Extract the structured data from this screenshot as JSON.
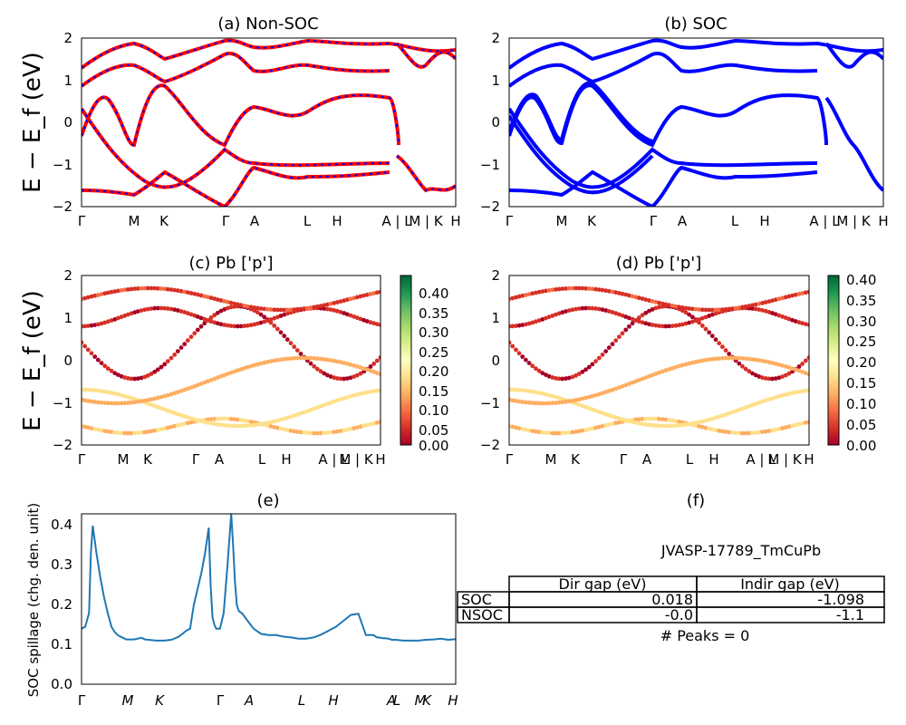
{
  "chart_data": [
    {
      "type": "line",
      "title": "(a) Non-SOC",
      "ylabel": "E − E_f (eV)",
      "ylim": [
        -2,
        2
      ],
      "yticks": [
        "2",
        "1",
        "0",
        "−1",
        "−2"
      ],
      "xtick_labels": [
        "Γ",
        "M",
        "K",
        "Γ",
        "A",
        "L",
        "H",
        "A | L",
        "M | K",
        "H"
      ],
      "series": [
        {
          "color": "#ff0000",
          "style": "solid"
        },
        {
          "color": "#0000ff",
          "style": "dashed"
        }
      ]
    },
    {
      "type": "line",
      "title": "(b) SOC",
      "ylim": [
        -2,
        2
      ],
      "yticks": [
        "2",
        "1",
        "0",
        "−1",
        "−2"
      ],
      "xtick_labels": [
        "Γ",
        "M",
        "K",
        "Γ",
        "A",
        "L",
        "H",
        "A | L",
        "M | K",
        "H"
      ],
      "series": [
        {
          "color": "#0000ff",
          "style": "solid"
        }
      ]
    },
    {
      "type": "scatter",
      "title": "(c)  Pb ['p']",
      "ylabel": "E − E_f (eV)",
      "ylim": [
        -2,
        2
      ],
      "yticks": [
        "2",
        "1",
        "0",
        "−1",
        "−2"
      ],
      "xtick_labels": [
        "Γ",
        "M",
        "K",
        "Γ",
        "A",
        "L",
        "H",
        "A | L",
        "M | K",
        "H"
      ],
      "colorbar_ticks": [
        "0.40",
        "0.35",
        "0.30",
        "0.25",
        "0.20",
        "0.15",
        "0.10",
        "0.05",
        "0.00"
      ],
      "colorbar_range": [
        0.0,
        0.43
      ],
      "colormap": "RdYlGn"
    },
    {
      "type": "scatter",
      "title": "(d) Pb ['p']",
      "ylim": [
        -2,
        2
      ],
      "yticks": [
        "2",
        "1",
        "0",
        "−1",
        "−2"
      ],
      "xtick_labels": [
        "Γ",
        "M",
        "K",
        "Γ",
        "A",
        "L",
        "H",
        "A | L",
        "M | K",
        "H"
      ],
      "colorbar_ticks": [
        "0.40",
        "0.35",
        "0.30",
        "0.25",
        "0.20",
        "0.15",
        "0.10",
        "0.05",
        "0.00"
      ],
      "colorbar_range": [
        0.0,
        0.41
      ],
      "colormap": "RdYlGn"
    },
    {
      "type": "line",
      "title": "(e)",
      "ylabel": "SOC spillage (chg. den. unit)",
      "ylim": [
        0.0,
        0.43
      ],
      "yticks": [
        "0.4",
        "0.3",
        "0.2",
        "0.1",
        "0.0"
      ],
      "xtick_labels": [
        "Γ",
        "M",
        "K",
        "Γ",
        "A",
        "L",
        "H",
        "A",
        "L",
        "M",
        "K",
        "H"
      ],
      "color": "#1f77b4",
      "x": [
        0.0,
        0.01,
        0.02,
        0.025,
        0.03,
        0.04,
        0.05,
        0.06,
        0.07,
        0.08,
        0.09,
        0.1,
        0.12,
        0.14,
        0.16,
        0.17,
        0.18,
        0.2,
        0.22,
        0.24,
        0.26,
        0.28,
        0.29,
        0.3,
        0.31,
        0.32,
        0.33,
        0.34,
        0.345,
        0.35,
        0.355,
        0.36,
        0.37,
        0.38,
        0.39,
        0.4,
        0.405,
        0.41,
        0.415,
        0.42,
        0.43,
        0.44,
        0.46,
        0.48,
        0.5,
        0.52,
        0.54,
        0.56,
        0.58,
        0.6,
        0.62,
        0.64,
        0.66,
        0.68,
        0.7,
        0.72,
        0.74,
        0.76,
        0.78,
        0.79,
        0.8,
        0.805,
        0.81,
        0.82,
        0.83,
        0.84,
        0.86,
        0.88,
        0.9,
        0.92,
        0.94,
        0.96,
        0.98,
        1.0
      ],
      "values": [
        0.14,
        0.145,
        0.18,
        0.33,
        0.4,
        0.33,
        0.27,
        0.22,
        0.18,
        0.145,
        0.13,
        0.122,
        0.113,
        0.113,
        0.117,
        0.113,
        0.112,
        0.11,
        0.11,
        0.112,
        0.12,
        0.135,
        0.14,
        0.2,
        0.24,
        0.28,
        0.33,
        0.395,
        0.25,
        0.17,
        0.15,
        0.14,
        0.14,
        0.18,
        0.3,
        0.43,
        0.35,
        0.26,
        0.2,
        0.185,
        0.178,
        0.165,
        0.14,
        0.127,
        0.124,
        0.124,
        0.12,
        0.118,
        0.115,
        0.115,
        0.118,
        0.125,
        0.135,
        0.145,
        0.16,
        0.175,
        0.178,
        0.124,
        0.124,
        0.118,
        0.117,
        0.116,
        0.116,
        0.115,
        0.112,
        0.112,
        0.11,
        0.11,
        0.11,
        0.112,
        0.113,
        0.115,
        0.112,
        0.114
      ]
    },
    {
      "type": "table",
      "title": "(f)",
      "subtitle": "JVASP-17789_TmCuPb",
      "columns": [
        "Dir gap (eV)",
        "Indir gap (eV)"
      ],
      "rows": [
        {
          "label": "SOC",
          "values": [
            "0.018",
            "-1.098"
          ]
        },
        {
          "label": "NSOC",
          "values": [
            "-0.0",
            "-1.1"
          ]
        }
      ],
      "footer": "# Peaks = 0"
    }
  ]
}
